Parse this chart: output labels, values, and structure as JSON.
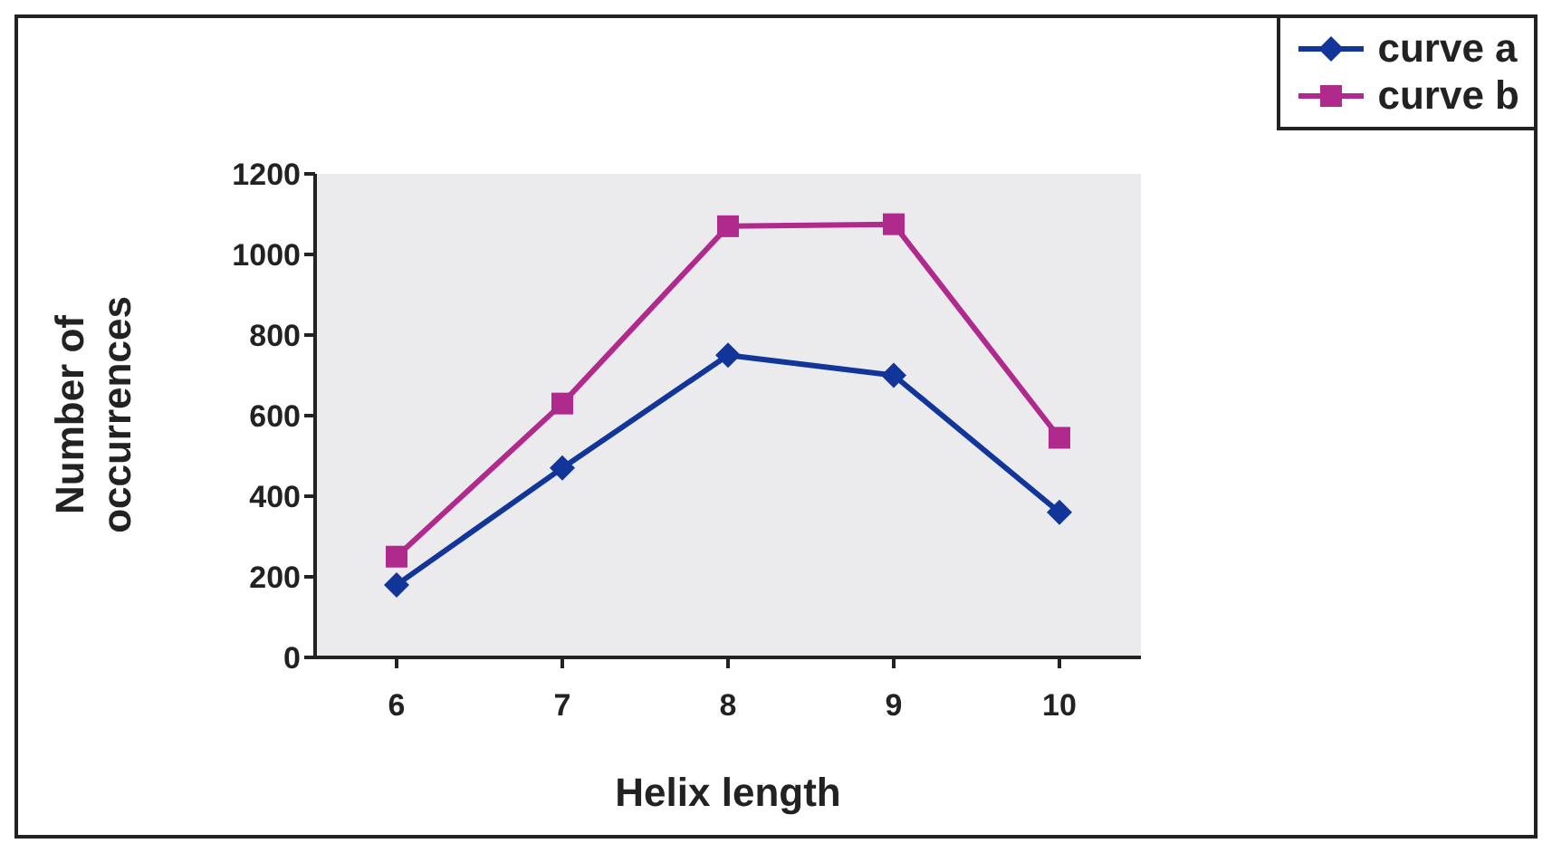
{
  "chart_data": {
    "type": "line",
    "xlabel": "Helix length",
    "ylabel": "Number of occurrences",
    "categories": [
      "6",
      "7",
      "8",
      "9",
      "10"
    ],
    "series": [
      {
        "name": "curve a",
        "color": "#12359a",
        "marker": "diamond",
        "values": [
          180,
          470,
          750,
          700,
          360
        ]
      },
      {
        "name": "curve b",
        "color": "#b02a8e",
        "marker": "square",
        "values": [
          250,
          630,
          1070,
          1075,
          545
        ]
      }
    ],
    "ylim": [
      0,
      1200
    ],
    "yticks": [
      0,
      200,
      400,
      600,
      800,
      1000,
      1200
    ],
    "grid": false,
    "legend": "top right"
  }
}
